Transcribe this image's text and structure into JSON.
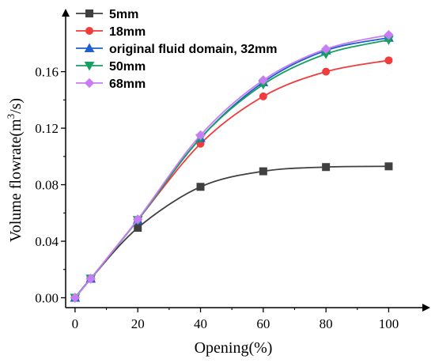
{
  "chart_data": {
    "type": "line",
    "x": [
      0,
      5,
      20,
      40,
      60,
      80,
      100
    ],
    "xlabel": "Opening(%)",
    "ylabel_main": "Volume flowrate(m",
    "ylabel_sup": "3",
    "ylabel_end": "/s)",
    "xlim": [
      -3,
      113
    ],
    "ylim": [
      -0.007,
      0.204
    ],
    "xticks": [
      0,
      20,
      40,
      60,
      80,
      100
    ],
    "xtick_labels": [
      "0",
      "20",
      "40",
      "60",
      "80",
      "100"
    ],
    "yticks": [
      0.0,
      0.04,
      0.08,
      0.12,
      0.16
    ],
    "ytick_labels": [
      "0.00",
      "0.04",
      "0.08",
      "0.12",
      "0.16"
    ],
    "grid": false,
    "legend_position": "top-left",
    "series": [
      {
        "name": "5mm",
        "color": "#404040",
        "marker": "square",
        "values": [
          0.0,
          0.0135,
          0.0495,
          0.0785,
          0.0895,
          0.0925,
          0.093
        ]
      },
      {
        "name": "18mm",
        "color": "#f03c3c",
        "marker": "circle",
        "values": [
          0.0,
          0.0135,
          0.055,
          0.109,
          0.1425,
          0.16,
          0.168
        ]
      },
      {
        "name": "original fluid domain, 32mm",
        "color": "#1f5fd0",
        "marker": "triangle-up",
        "values": [
          0.0,
          0.0135,
          0.055,
          0.113,
          0.1525,
          0.175,
          0.184
        ]
      },
      {
        "name": "50mm",
        "color": "#14a060",
        "marker": "triangle-down",
        "values": [
          0.0,
          0.0135,
          0.055,
          0.113,
          0.151,
          0.1725,
          0.1825
        ]
      },
      {
        "name": "68mm",
        "color": "#c77df3",
        "marker": "diamond",
        "values": [
          0.0,
          0.0135,
          0.0555,
          0.115,
          0.154,
          0.176,
          0.186
        ]
      }
    ]
  }
}
